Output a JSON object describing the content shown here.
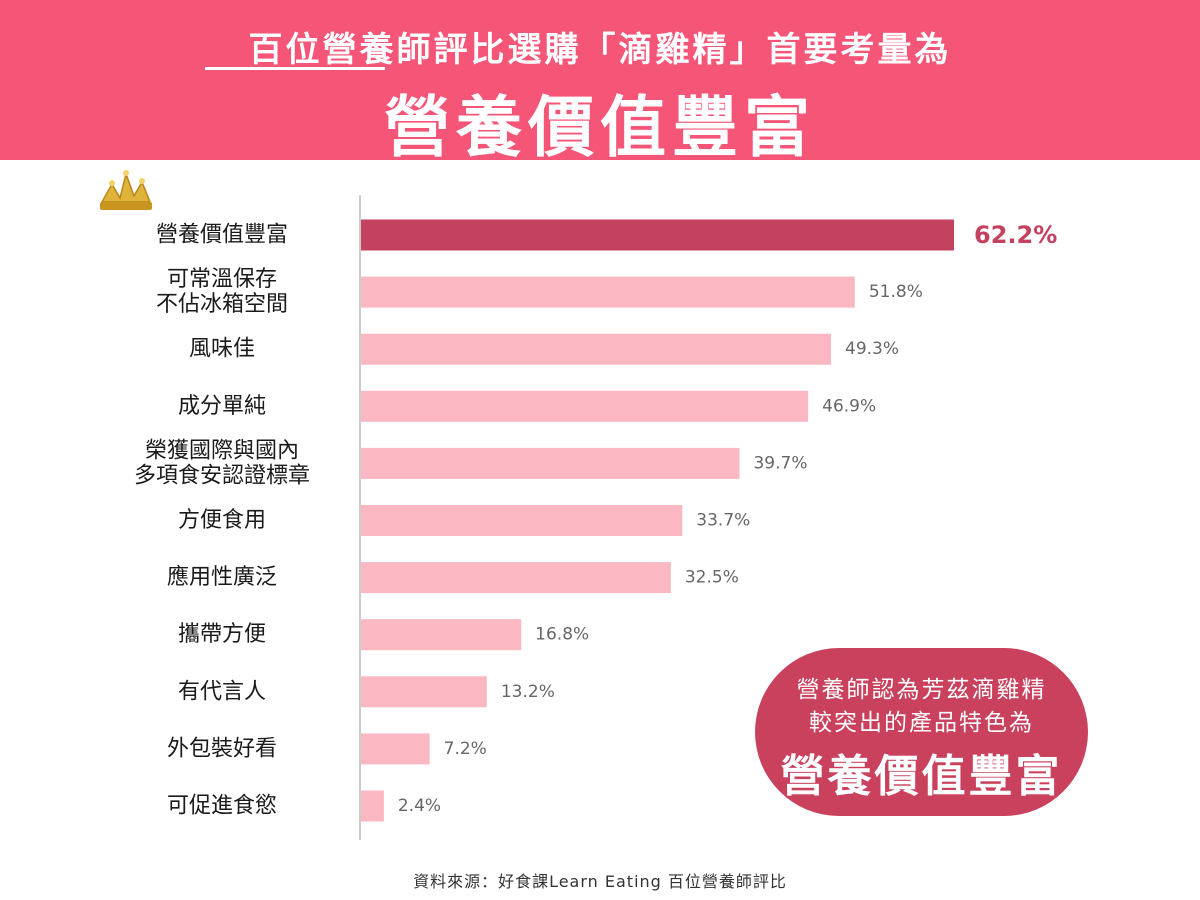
{
  "header": {
    "subtitle": "百位營養師評比選購「滴雞精」首要考量為",
    "title": "營養價值豐富"
  },
  "chart_data": {
    "type": "bar",
    "orientation": "horizontal",
    "categories": [
      "營養價值豐富",
      "可常溫保存\n不佔冰箱空間",
      "風味佳",
      "成分單純",
      "榮獲國際與國內\n多項食安認證標章",
      "方便食用",
      "應用性廣泛",
      "攜帶方便",
      "有代言人",
      "外包裝好看",
      "可促進食慾"
    ],
    "values": [
      62.2,
      51.8,
      49.3,
      46.9,
      39.7,
      33.7,
      32.5,
      16.8,
      13.2,
      7.2,
      2.4
    ],
    "value_labels": [
      "62.2%",
      "51.8%",
      "49.3%",
      "46.9%",
      "39.7%",
      "33.7%",
      "32.5%",
      "16.8%",
      "13.2%",
      "7.2%",
      "2.4%"
    ],
    "highlight_index": 0,
    "xlim": [
      0,
      62.2
    ],
    "colors": {
      "highlight": "#c4415f",
      "bar": "#fbb7c2",
      "highlight_label": "#c4415f",
      "label": "#666666",
      "axis": "#cccccc",
      "crown": "#e0b33b"
    }
  },
  "callout": {
    "line1": "營養師認為芳茲滴雞精",
    "line2": "較突出的產品特色為",
    "emphasis": "營養價值豐富"
  },
  "source": "資料來源：好食課Learn Eating 百位營養師評比",
  "icons": {
    "crown": "crown-icon"
  }
}
